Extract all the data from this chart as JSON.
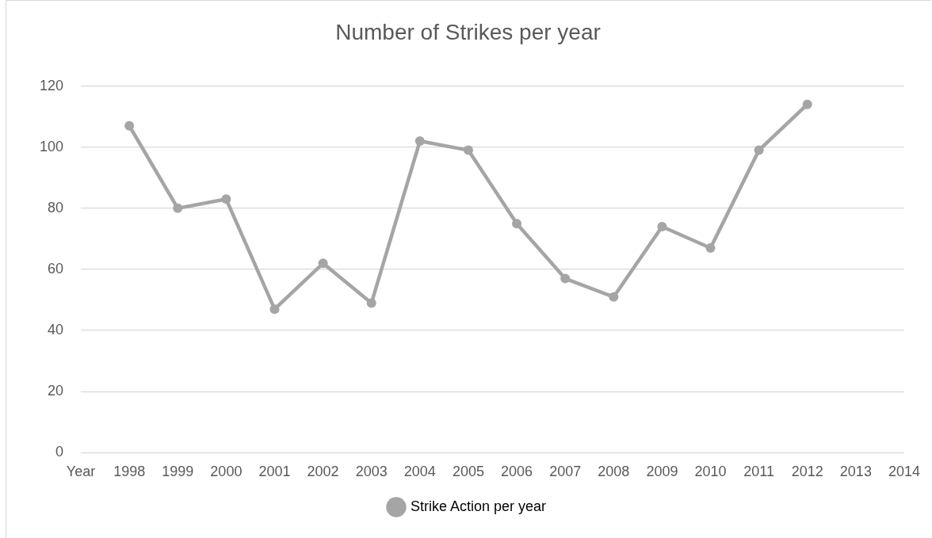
{
  "chart_data": {
    "type": "line",
    "title": "Number of Strikes per year",
    "categories": [
      "Year",
      "1998",
      "1999",
      "2000",
      "2001",
      "2002",
      "2003",
      "2004",
      "2005",
      "2006",
      "2007",
      "2008",
      "2009",
      "2010",
      "2011",
      "2012",
      "2013",
      "2014"
    ],
    "series": [
      {
        "name": "Strike Action per year",
        "color": "#a5a5a5",
        "values": [
          null,
          107,
          80,
          83,
          47,
          62,
          49,
          102,
          99,
          75,
          57,
          51,
          74,
          67,
          99,
          114,
          null,
          null
        ]
      }
    ],
    "ylim": [
      0,
      120
    ],
    "yticks": [
      0,
      20,
      40,
      60,
      80,
      100,
      120
    ],
    "grid": "y",
    "legend": "bottom",
    "marker": "circle",
    "line_style": "solid"
  }
}
